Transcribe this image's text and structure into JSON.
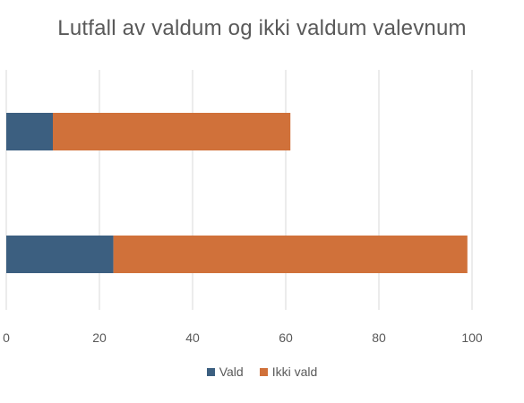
{
  "chart_data": {
    "type": "bar",
    "orientation": "horizontal",
    "stacked": true,
    "title": "Lutfall av valdum og ikki valdum valevnum",
    "categories": [
      "",
      ""
    ],
    "series": [
      {
        "name": "Vald",
        "color": "#3c5f80",
        "values": [
          23,
          10
        ]
      },
      {
        "name": "Ikki vald",
        "color": "#d0713a",
        "values": [
          76,
          51
        ]
      }
    ],
    "xlim": [
      0,
      100
    ],
    "xticks": [
      0,
      20,
      40,
      60,
      80,
      100
    ],
    "grid": true,
    "legend_position": "bottom"
  }
}
